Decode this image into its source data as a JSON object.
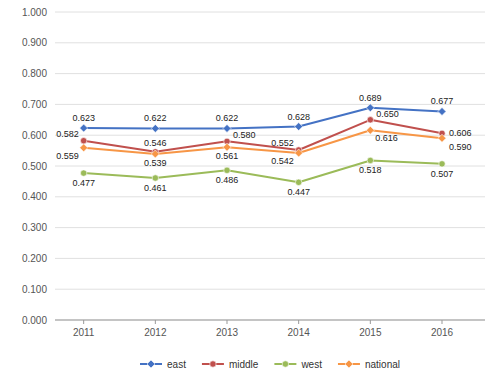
{
  "chart_data": {
    "type": "line",
    "x": [
      2011,
      2012,
      2013,
      2014,
      2015,
      2016
    ],
    "xlim": [
      2010.6,
      2016.6
    ],
    "xticks": [
      2011,
      2012,
      2013,
      2014,
      2015,
      2016
    ],
    "ylim": [
      0.0,
      1.0
    ],
    "yticks": [
      {
        "value": 0.0,
        "label": "0.000"
      },
      {
        "value": 0.1,
        "label": "0.100"
      },
      {
        "value": 0.2,
        "label": "0.200"
      },
      {
        "value": 0.3,
        "label": "0.300"
      },
      {
        "value": 0.4,
        "label": "0.400"
      },
      {
        "value": 0.5,
        "label": "0.500"
      },
      {
        "value": 0.6,
        "label": "0.600"
      },
      {
        "value": 0.7,
        "label": "0.700"
      },
      {
        "value": 0.8,
        "label": "0.800"
      },
      {
        "value": 0.9,
        "label": "0.900"
      },
      {
        "value": 1.0,
        "label": "1.000"
      }
    ],
    "grid": true,
    "legend": "bottom",
    "data_labels": true,
    "series": [
      {
        "name": "east",
        "color": "#4472C4",
        "marker": "diamond",
        "values": [
          0.623,
          0.622,
          0.622,
          0.628,
          0.689,
          0.677
        ],
        "value_labels": [
          "0.623",
          "0.622",
          "0.622",
          "0.628",
          "0.689",
          "0.677"
        ]
      },
      {
        "name": "middle",
        "color": "#C0504D",
        "marker": "circle",
        "values": [
          0.582,
          0.546,
          0.58,
          0.552,
          0.65,
          0.606
        ],
        "value_labels": [
          "0.582",
          "0.546",
          "0.580",
          "0.552",
          "0.650",
          "0.606"
        ]
      },
      {
        "name": "west",
        "color": "#9BBB59",
        "marker": "circle",
        "values": [
          0.477,
          0.461,
          0.486,
          0.447,
          0.518,
          0.507
        ],
        "value_labels": [
          "0.477",
          "0.461",
          "0.486",
          "0.447",
          "0.518",
          "0.507"
        ]
      },
      {
        "name": "national",
        "color": "#F79646",
        "marker": "diamond",
        "values": [
          0.559,
          0.539,
          0.561,
          0.542,
          0.616,
          0.59
        ],
        "value_labels": [
          "0.559",
          "0.539",
          "0.561",
          "0.542",
          "0.616",
          "0.590"
        ]
      }
    ]
  }
}
